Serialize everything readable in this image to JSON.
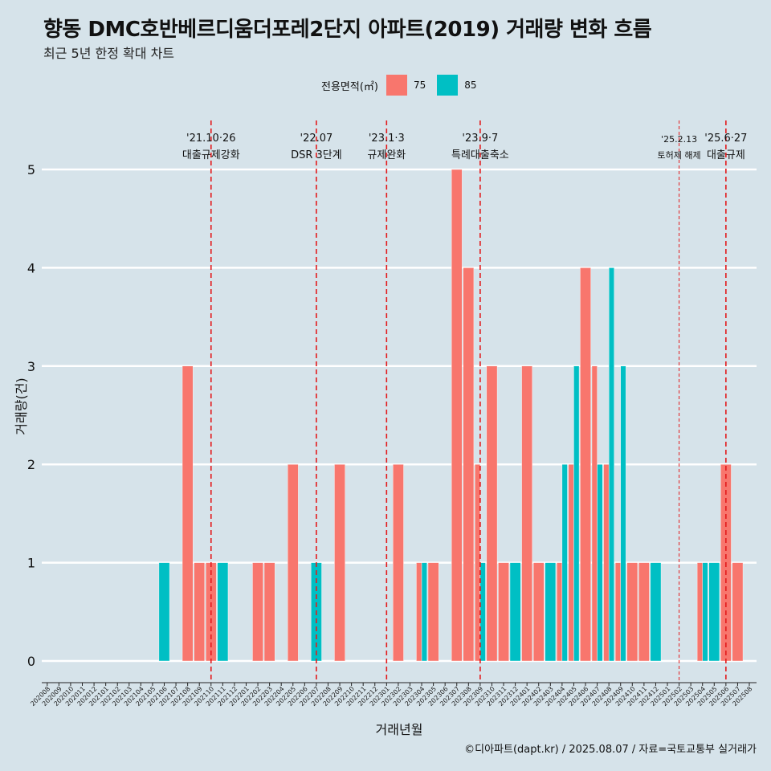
{
  "title": "향동 DMC호반베르디움더포레2단지 아파트(2019) 거래량 변화 흐름",
  "subtitle": "최근 5년 한정 확대 차트",
  "caption": "©디아파트(dapt.kr) / 2025.08.07 / 자료=국토교통부 실거래가",
  "colors": {
    "s75": "#F8766D",
    "s85": "#00BFC4",
    "background": "#d6e3ea",
    "grid": "#ffffff",
    "vline": "#e31a1c"
  },
  "chart_data": {
    "type": "bar",
    "xlabel": "거래년월",
    "ylabel": "거래량(건)",
    "ylim": [
      0,
      5
    ],
    "yticks": [
      0,
      1,
      2,
      3,
      4,
      5
    ],
    "legend_title": "전용면적(㎡)",
    "legend_position": "top",
    "grid": true,
    "categories": [
      "202008",
      "202009",
      "202010",
      "202011",
      "202012",
      "202101",
      "202102",
      "202103",
      "202104",
      "202105",
      "202106",
      "202107",
      "202108",
      "202109",
      "202110",
      "202111",
      "202112",
      "202201",
      "202202",
      "202203",
      "202204",
      "202205",
      "202206",
      "202207",
      "202208",
      "202209",
      "202210",
      "202211",
      "202212",
      "202301",
      "202302",
      "202303",
      "202304",
      "202305",
      "202306",
      "202307",
      "202308",
      "202309",
      "202310",
      "202311",
      "202312",
      "202401",
      "202402",
      "202403",
      "202404",
      "202405",
      "202406",
      "202407",
      "202408",
      "202409",
      "202410",
      "202411",
      "202412",
      "202501",
      "202502",
      "202503",
      "202504",
      "202505",
      "202506",
      "202507",
      "202508"
    ],
    "series": [
      {
        "name": "75",
        "color": "#F8766D",
        "values": [
          0,
          0,
          0,
          0,
          0,
          0,
          0,
          0,
          0,
          0,
          0,
          0,
          3,
          1,
          1,
          0,
          0,
          0,
          1,
          1,
          0,
          2,
          0,
          0,
          0,
          2,
          0,
          0,
          0,
          0,
          2,
          0,
          1,
          1,
          0,
          5,
          4,
          2,
          3,
          1,
          0,
          3,
          1,
          0,
          1,
          2,
          4,
          3,
          2,
          1,
          1,
          1,
          0,
          0,
          0,
          0,
          1,
          0,
          2,
          1,
          0
        ]
      },
      {
        "name": "85",
        "color": "#00BFC4",
        "values": [
          0,
          0,
          0,
          0,
          0,
          0,
          0,
          0,
          0,
          0,
          1,
          0,
          0,
          0,
          0,
          1,
          0,
          0,
          0,
          0,
          0,
          0,
          0,
          1,
          0,
          0,
          0,
          0,
          0,
          0,
          0,
          0,
          1,
          0,
          0,
          0,
          0,
          1,
          0,
          0,
          1,
          0,
          0,
          1,
          2,
          3,
          0,
          2,
          4,
          3,
          0,
          0,
          1,
          0,
          0,
          0,
          1,
          1,
          0,
          0,
          0
        ]
      }
    ],
    "annotations": [
      {
        "category": "202110",
        "date": "'21.10·26",
        "label": "대출규제강화",
        "small": false
      },
      {
        "category": "202207",
        "date": "'22.07",
        "label": "DSR 3단계",
        "small": false
      },
      {
        "category": "202301",
        "date": "'23.1·3",
        "label": "규제완화",
        "small": false
      },
      {
        "category": "202309",
        "date": "'23.9·7",
        "label": "특례대출축소",
        "small": false
      },
      {
        "category": "202502",
        "date": "'25.2.13",
        "label": "토허제 해제",
        "small": true
      },
      {
        "category": "202506",
        "date": "'25.6·27",
        "label": "대출규제",
        "small": false
      }
    ]
  }
}
